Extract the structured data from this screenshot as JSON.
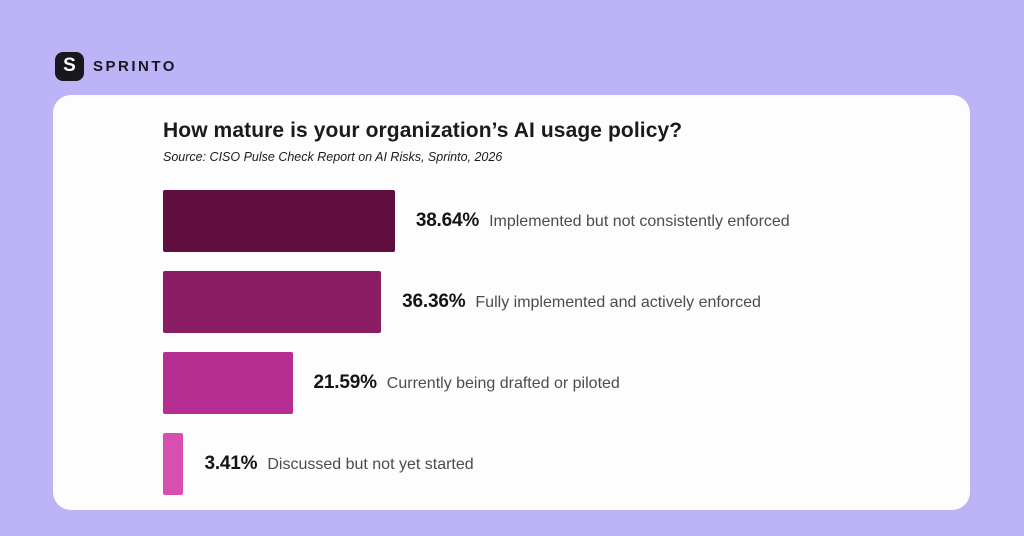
{
  "header": {
    "logo_letter": "S",
    "brand": "SPRINTO"
  },
  "theme": {
    "page_background": "#bdb4f8",
    "card_background": "#fdfdfd",
    "brand_dark": "#17171d",
    "title_color": "#1a1a1a",
    "value_label_color": "#141414",
    "category_label_color": "#4c4c4c"
  },
  "chart_data": {
    "type": "bar",
    "orientation": "horizontal",
    "title": "How mature is your organization’s AI usage policy?",
    "source_note": "Source: CISO Pulse Check Report on AI Risks, Sprinto, 2026",
    "categories": [
      "Implemented but not consistently enforced",
      "Fully implemented and actively enforced",
      "Currently being drafted or piloted",
      "Discussed but not yet started"
    ],
    "values": [
      38.64,
      36.36,
      21.59,
      3.41
    ],
    "value_labels": [
      "38.64%",
      "36.36%",
      "21.59%",
      "3.41%"
    ],
    "bar_colors": [
      "#600d40",
      "#8a1c63",
      "#b72e92",
      "#d94fb0"
    ],
    "value_suffix": "%",
    "xlim": [
      0,
      40
    ],
    "grid": false,
    "legend": "none"
  }
}
